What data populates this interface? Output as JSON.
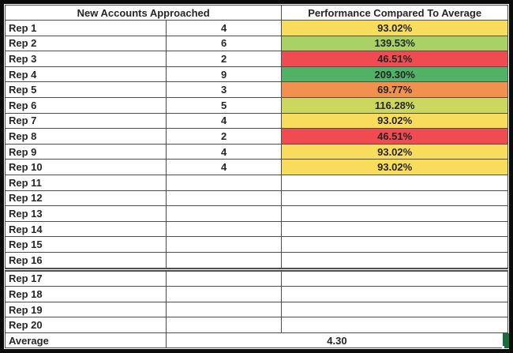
{
  "table": {
    "header": {
      "left": "New Accounts Approached",
      "right": "Performance Compared To Average"
    },
    "rows": [
      {
        "label": "Rep 1",
        "value": "4",
        "performance": "93.02%",
        "fill": "yellow"
      },
      {
        "label": "Rep 2",
        "value": "6",
        "performance": "139.53%",
        "fill": "light_green"
      },
      {
        "label": "Rep 3",
        "value": "2",
        "performance": "46.51%",
        "fill": "red"
      },
      {
        "label": "Rep 4",
        "value": "9",
        "performance": "209.30%",
        "fill": "green"
      },
      {
        "label": "Rep 5",
        "value": "3",
        "performance": "69.77%",
        "fill": "orange"
      },
      {
        "label": "Rep 6",
        "value": "5",
        "performance": "116.28%",
        "fill": "yellow_green"
      },
      {
        "label": "Rep 7",
        "value": "4",
        "performance": "93.02%",
        "fill": "yellow"
      },
      {
        "label": "Rep 8",
        "value": "2",
        "performance": "46.51%",
        "fill": "red"
      },
      {
        "label": "Rep 9",
        "value": "4",
        "performance": "93.02%",
        "fill": "yellow"
      },
      {
        "label": "Rep 10",
        "value": "4",
        "performance": "93.02%",
        "fill": "yellow"
      },
      {
        "label": "Rep 11",
        "value": "",
        "performance": "",
        "fill": "none"
      },
      {
        "label": "Rep 12",
        "value": "",
        "performance": "",
        "fill": "none"
      },
      {
        "label": "Rep 13",
        "value": "",
        "performance": "",
        "fill": "none"
      },
      {
        "label": "Rep 14",
        "value": "",
        "performance": "",
        "fill": "none"
      },
      {
        "label": "Rep 15",
        "value": "",
        "performance": "",
        "fill": "none"
      },
      {
        "label": "Rep 16",
        "value": "",
        "performance": "",
        "fill": "none"
      },
      {
        "label": "Rep 17",
        "value": "",
        "performance": "",
        "fill": "none",
        "divider_above": true
      },
      {
        "label": "Rep 18",
        "value": "",
        "performance": "",
        "fill": "none"
      },
      {
        "label": "Rep 19",
        "value": "",
        "performance": "",
        "fill": "none"
      },
      {
        "label": "Rep 20",
        "value": "",
        "performance": "",
        "fill": "none"
      }
    ],
    "footer": {
      "label": "Average",
      "value": "4.30"
    }
  },
  "colors": {
    "yellow": "#F8DC5B",
    "light_green": "#A9D164",
    "red": "#EF4B51",
    "green": "#4FB267",
    "orange": "#F2914E",
    "yellow_green": "#CBD75E",
    "artifact_green": "#1A6E3C"
  }
}
